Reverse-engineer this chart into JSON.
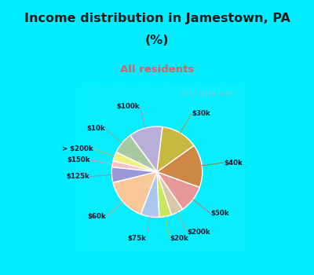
{
  "title_line1": "Income distribution in Jamestown, PA",
  "title_line2": "(%)",
  "subtitle": "All residents",
  "title_color": "#1a1a1a",
  "subtitle_color": "#cc6666",
  "bg_color": "#00eeff",
  "chart_bg_color": "#e8f5ee",
  "labels": [
    "$100k",
    "$10k",
    "> $200k",
    "$150k",
    "$125k",
    "$60k",
    "$75k",
    "$20k",
    "$200k",
    "$50k",
    "$40k",
    "$30k"
  ],
  "values": [
    11,
    7,
    3,
    2,
    5,
    14,
    6,
    4,
    4,
    9,
    14,
    12
  ],
  "colors": [
    "#b8aed8",
    "#a8c8a0",
    "#f0f080",
    "#f8c0c8",
    "#9898d8",
    "#f8c898",
    "#a8c8f0",
    "#c8e860",
    "#d8c8a8",
    "#e89898",
    "#cc8844",
    "#c8b840"
  ],
  "watermark": "  City-Data.com",
  "startangle": 83
}
